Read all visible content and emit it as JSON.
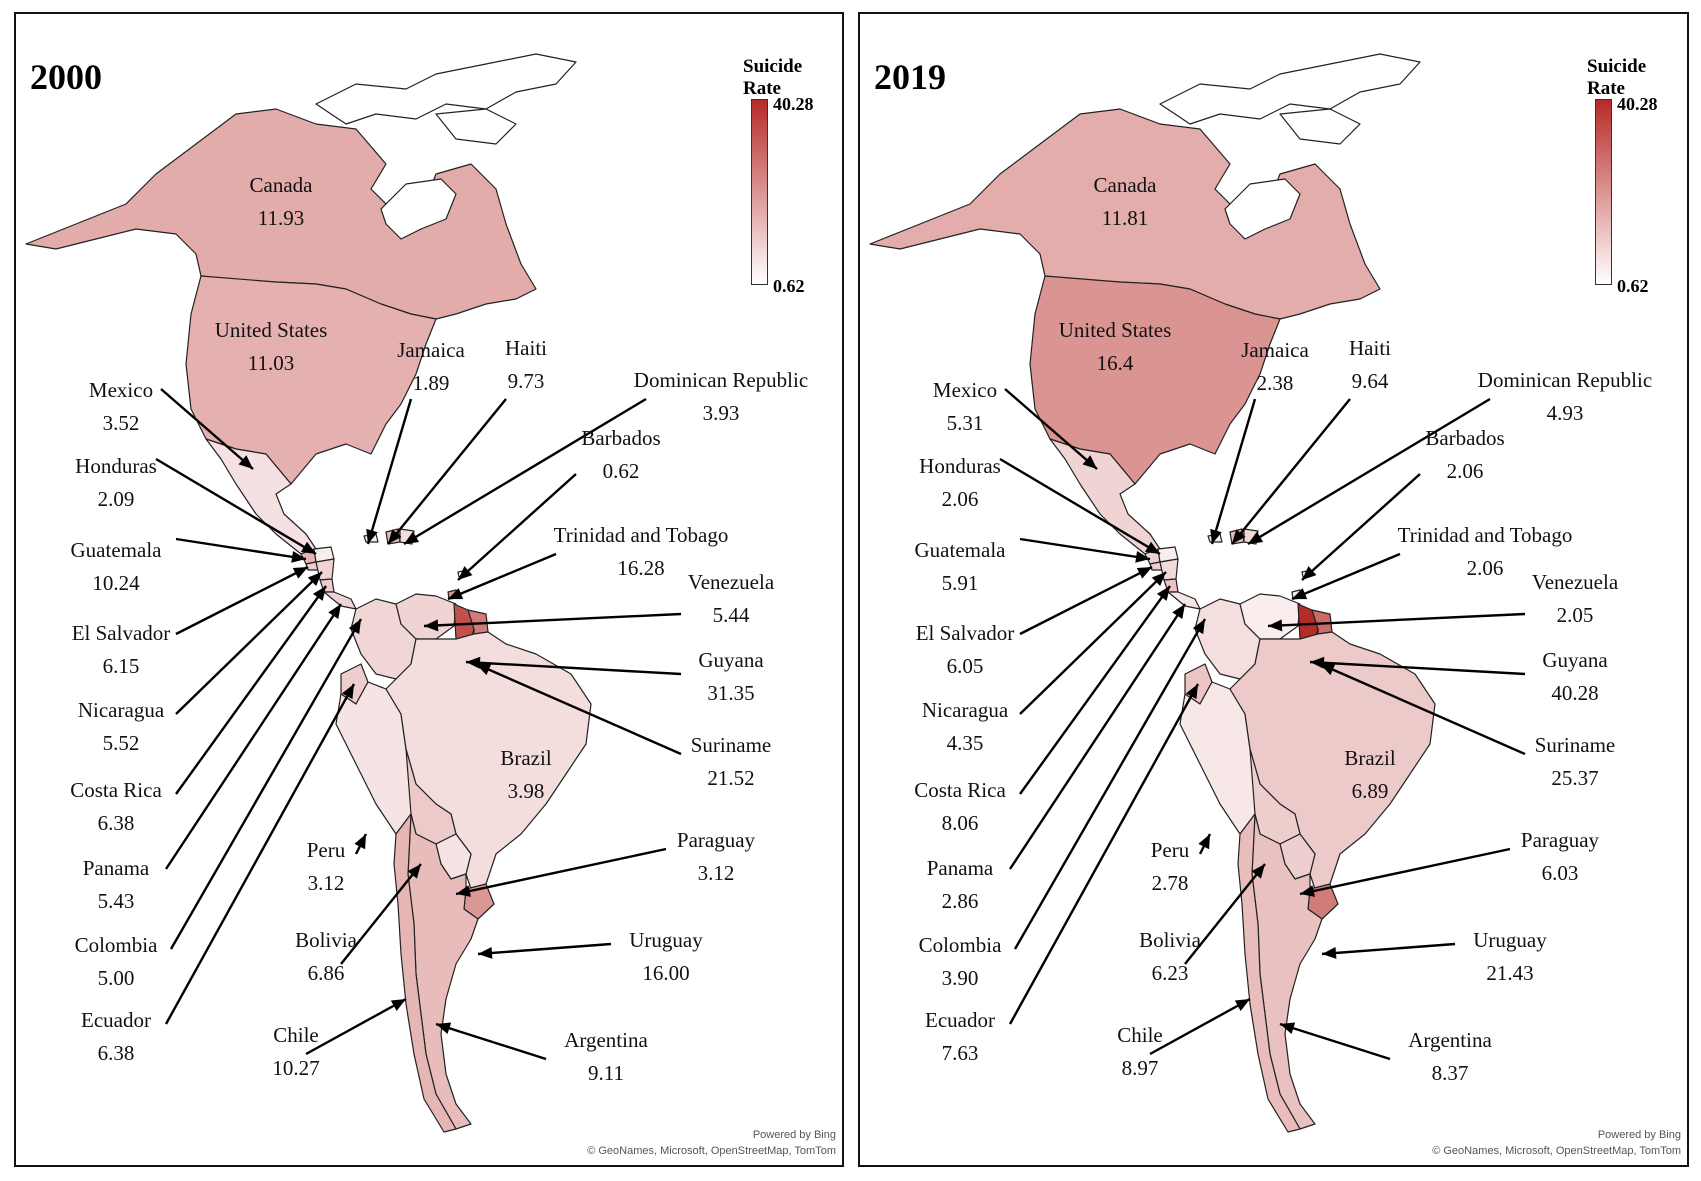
{
  "legend": {
    "title": "Suicide Rate",
    "max": "40.28",
    "min": "0.62",
    "color_low": "#ffffff",
    "color_high": "#b52b27"
  },
  "credits": {
    "powered": "Powered by Bing",
    "sources": "© GeoNames, Microsoft, OpenStreetMap, TomTom"
  },
  "panels": [
    {
      "year": "2000",
      "countries": {
        "canada": {
          "name": "Canada",
          "rate": "11.93"
        },
        "united_states": {
          "name": "United States",
          "rate": "11.03"
        },
        "mexico": {
          "name": "Mexico",
          "rate": "3.52"
        },
        "honduras": {
          "name": "Honduras",
          "rate": "2.09"
        },
        "guatemala": {
          "name": "Guatemala",
          "rate": "10.24"
        },
        "el_salvador": {
          "name": "El Salvador",
          "rate": "6.15"
        },
        "nicaragua": {
          "name": "Nicaragua",
          "rate": "5.52"
        },
        "costa_rica": {
          "name": "Costa Rica",
          "rate": "6.38"
        },
        "panama": {
          "name": "Panama",
          "rate": "5.43"
        },
        "colombia": {
          "name": "Colombia",
          "rate": "5.00"
        },
        "ecuador": {
          "name": "Ecuador",
          "rate": "6.38"
        },
        "chile": {
          "name": "Chile",
          "rate": "10.27"
        },
        "jamaica": {
          "name": "Jamaica",
          "rate": "1.89"
        },
        "haiti": {
          "name": "Haiti",
          "rate": "9.73"
        },
        "dominican_republic": {
          "name": "Dominican Republic",
          "rate": "3.93"
        },
        "barbados": {
          "name": "Barbados",
          "rate": "0.62"
        },
        "trinidad_and_tobago": {
          "name": "Trinidad and Tobago",
          "rate": "16.28"
        },
        "venezuela": {
          "name": "Venezuela",
          "rate": "5.44"
        },
        "guyana": {
          "name": "Guyana",
          "rate": "31.35"
        },
        "suriname": {
          "name": "Suriname",
          "rate": "21.52"
        },
        "brazil": {
          "name": "Brazil",
          "rate": "3.98"
        },
        "paraguay": {
          "name": "Paraguay",
          "rate": "3.12"
        },
        "uruguay": {
          "name": "Uruguay",
          "rate": "16.00"
        },
        "argentina": {
          "name": "Argentina",
          "rate": "9.11"
        },
        "peru": {
          "name": "Peru",
          "rate": "3.12"
        },
        "bolivia": {
          "name": "Bolivia",
          "rate": "6.86"
        }
      }
    },
    {
      "year": "2019",
      "countries": {
        "canada": {
          "name": "Canada",
          "rate": "11.81"
        },
        "united_states": {
          "name": "United States",
          "rate": "16.4"
        },
        "mexico": {
          "name": "Mexico",
          "rate": "5.31"
        },
        "honduras": {
          "name": "Honduras",
          "rate": "2.06"
        },
        "guatemala": {
          "name": "Guatemala",
          "rate": "5.91"
        },
        "el_salvador": {
          "name": "El Salvador",
          "rate": "6.05"
        },
        "nicaragua": {
          "name": "Nicaragua",
          "rate": "4.35"
        },
        "costa_rica": {
          "name": "Costa Rica",
          "rate": "8.06"
        },
        "panama": {
          "name": "Panama",
          "rate": "2.86"
        },
        "colombia": {
          "name": "Colombia",
          "rate": "3.90"
        },
        "ecuador": {
          "name": "Ecuador",
          "rate": "7.63"
        },
        "chile": {
          "name": "Chile",
          "rate": "8.97"
        },
        "jamaica": {
          "name": "Jamaica",
          "rate": "2.38"
        },
        "haiti": {
          "name": "Haiti",
          "rate": "9.64"
        },
        "dominican_republic": {
          "name": "Dominican Republic",
          "rate": "4.93"
        },
        "barbados": {
          "name": "Barbados",
          "rate": "2.06"
        },
        "trinidad_and_tobago": {
          "name": "Trinidad and Tobago",
          "rate": "2.06"
        },
        "venezuela": {
          "name": "Venezuela",
          "rate": "2.05"
        },
        "guyana": {
          "name": "Guyana",
          "rate": "40.28"
        },
        "suriname": {
          "name": "Suriname",
          "rate": "25.37"
        },
        "brazil": {
          "name": "Brazil",
          "rate": "6.89"
        },
        "paraguay": {
          "name": "Paraguay",
          "rate": "6.03"
        },
        "uruguay": {
          "name": "Uruguay",
          "rate": "21.43"
        },
        "argentina": {
          "name": "Argentina",
          "rate": "8.37"
        },
        "peru": {
          "name": "Peru",
          "rate": "2.78"
        },
        "bolivia": {
          "name": "Bolivia",
          "rate": "6.23"
        }
      }
    }
  ]
}
